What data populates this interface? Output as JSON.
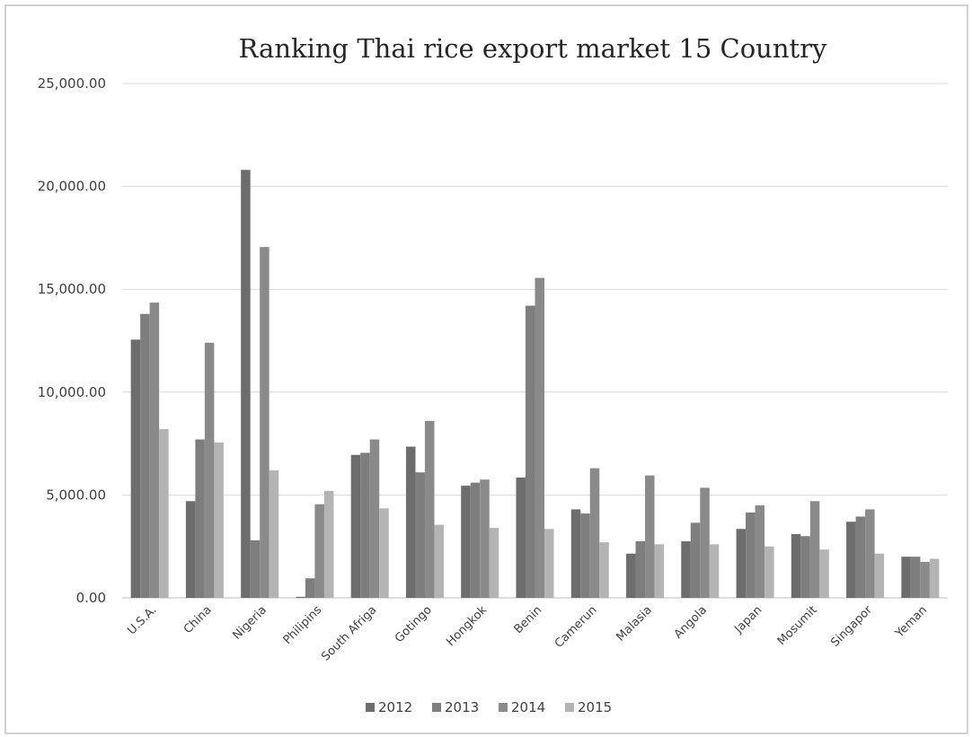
{
  "chart_data": {
    "type": "bar",
    "title": "Ranking Thai rice export market 15 Country",
    "xlabel": "",
    "ylabel": "",
    "ylim": [
      0,
      25000
    ],
    "yticks": [
      "0.00",
      "5,000.00",
      "10,000.00",
      "15,000.00",
      "20,000.00",
      "25,000.00"
    ],
    "ytick_values": [
      0,
      5000,
      10000,
      15000,
      20000,
      25000
    ],
    "grid": true,
    "legend_position": "bottom",
    "categories": [
      "U.S.A.",
      "China",
      "Nigeria",
      "Philipins",
      "South Afriga",
      "Gotingo",
      "Hongkok",
      "Benin",
      "Camerun",
      "Malasia",
      "Angola",
      "Japan",
      "Mosumit",
      "Singapor",
      "Yeman"
    ],
    "series": [
      {
        "name": "2012",
        "color": "#6d6d6d",
        "values": [
          12550,
          4700,
          20800,
          50,
          6950,
          7350,
          5450,
          5850,
          4300,
          2150,
          2750,
          3350,
          3100,
          3700,
          2000
        ]
      },
      {
        "name": "2013",
        "color": "#7e7e7e",
        "values": [
          13800,
          7700,
          2800,
          950,
          7050,
          6100,
          5600,
          14200,
          4100,
          2750,
          3650,
          4150,
          3000,
          3950,
          2000
        ]
      },
      {
        "name": "2014",
        "color": "#8a8a8a",
        "values": [
          14350,
          12400,
          17050,
          4550,
          7700,
          8600,
          5750,
          15550,
          6300,
          5950,
          5350,
          4500,
          4700,
          4300,
          1750
        ]
      },
      {
        "name": "2015",
        "color": "#b4b4b4",
        "values": [
          8200,
          7550,
          6200,
          5200,
          4350,
          3550,
          3400,
          3350,
          2700,
          2600,
          2600,
          2500,
          2350,
          2150,
          1900
        ]
      }
    ]
  }
}
